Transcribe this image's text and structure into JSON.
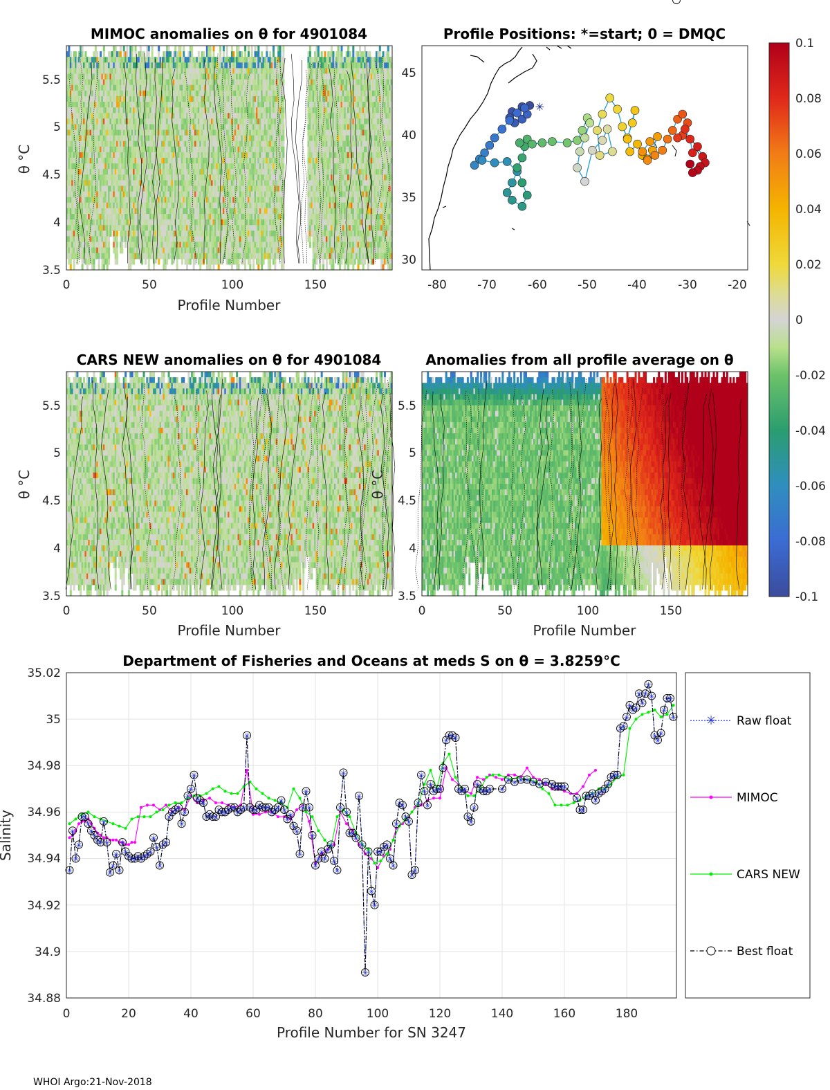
{
  "float_id": "4901084",
  "footer": "WHOI Argo:21-Nov-2018",
  "colorbar": {
    "ticks": [
      "0.1",
      "0.08",
      "0.06",
      "0.04",
      "0.02",
      "0",
      "-0.02",
      "-0.04",
      "-0.06",
      "-0.08",
      "-0.1"
    ],
    "range": [
      -0.1,
      0.1
    ]
  },
  "chart_data": [
    {
      "type": "heatmap",
      "id": "mimoc",
      "title": "MIMOC anomalies on θ  for 4901084",
      "xlabel": "Profile Number",
      "ylabel": "θ °C",
      "xlim": [
        0,
        196
      ],
      "ylim": [
        3.5,
        5.85
      ],
      "xticks": [
        "0",
        "50",
        "100",
        "150"
      ],
      "yticks": [
        "3.5",
        "4",
        "4.5",
        "5",
        "5.5"
      ]
    },
    {
      "type": "scatter",
      "id": "positions",
      "title": "Profile Positions: *=start; 0 = DMQC",
      "xlim": [
        -82,
        -17
      ],
      "ylim": [
        29,
        47
      ],
      "xticks": [
        "-80",
        "-70",
        "-60",
        "-50",
        "-40",
        "-30",
        "-20"
      ],
      "yticks": [
        "30",
        "35",
        "40",
        "45"
      ],
      "track_lon": [
        -60.5,
        -62,
        -64,
        -64.5,
        -63.5,
        -62,
        -61,
        -61.5,
        -63,
        -64.5,
        -66,
        -67.5,
        -68.5,
        -69.5,
        -70.5,
        -71.5,
        -70,
        -67.5,
        -65,
        -63,
        -64,
        -65,
        -64,
        -62,
        -61,
        -62,
        -63,
        -62,
        -61.5,
        -62.5,
        -61,
        -60,
        -58,
        -56,
        -53,
        -51,
        -50,
        -49,
        -48.5,
        -49.5,
        -50.5,
        -51,
        -49.5,
        -48,
        -46,
        -45,
        -44,
        -46.5,
        -47,
        -46,
        -44.5,
        -43,
        -42,
        -41,
        -40,
        -39.5,
        -41,
        -40.5,
        -39,
        -38,
        -37,
        -36,
        -35,
        -36.5,
        -38,
        -37,
        -35.5,
        -34,
        -33,
        -32,
        -31,
        -30,
        -29,
        -30,
        -31,
        -29.5,
        -28.5,
        -28,
        -27,
        -26,
        -25.5,
        -26.5,
        -27,
        -28,
        -28.5
      ],
      "track_lat": [
        42.2,
        42.1,
        41.7,
        41.2,
        40.8,
        41.1,
        41.5,
        42,
        41.6,
        41,
        40.3,
        39.6,
        39,
        38.4,
        37.9,
        37.4,
        37.8,
        37.6,
        37.7,
        36.9,
        36,
        35.2,
        34.6,
        34.1,
        35,
        36,
        37.2,
        38,
        38.9,
        39.2,
        39.5,
        39.1,
        39.2,
        39.3,
        39.2,
        39.4,
        40.2,
        41.2,
        40.8,
        39.6,
        38.5,
        37.2,
        36.1,
        38.6,
        39.4,
        40.3,
        38.5,
        38.2,
        40.2,
        41.5,
        42.8,
        41.9,
        40.5,
        39.6,
        40.8,
        41.8,
        39.5,
        38.5,
        39.1,
        38.2,
        37.9,
        38.6,
        39.7,
        39.3,
        38.5,
        37.8,
        38.2,
        38.6,
        39.5,
        40.2,
        41.1,
        41.5,
        40.8,
        39.8,
        39.6,
        40.3,
        39.5,
        38.4,
        38.9,
        38.1,
        37.6,
        37.3,
        37,
        36.8,
        37.5
      ],
      "start": [
        -58.5,
        42.1
      ]
    },
    {
      "type": "heatmap",
      "id": "cars",
      "title": "CARS NEW anomalies on θ for 4901084",
      "xlabel": "Profile Number",
      "ylabel": "θ °C",
      "xlim": [
        0,
        196
      ],
      "ylim": [
        3.5,
        5.85
      ],
      "xticks": [
        "0",
        "50",
        "100",
        "150"
      ],
      "yticks": [
        "3.5",
        "4",
        "4.5",
        "5",
        "5.5"
      ]
    },
    {
      "type": "heatmap",
      "id": "allavg",
      "title": "Anomalies from all profile average on θ",
      "xlabel": "Profile Number",
      "ylabel": "θ °C",
      "xlim": [
        0,
        196
      ],
      "ylim": [
        3.5,
        5.85
      ],
      "xticks": [
        "0",
        "50",
        "100",
        "150"
      ],
      "yticks": [
        "3.5",
        "4",
        "4.5",
        "5",
        "5.5"
      ]
    },
    {
      "type": "line",
      "id": "salinity",
      "title": "Department of Fisheries and Oceans at meds S on θ = 3.8259°C",
      "xlabel": "Profile Number for SN 3247",
      "ylabel": "Salinity",
      "xlim": [
        0,
        196
      ],
      "ylim": [
        34.88,
        35.02
      ],
      "xticks": [
        "0",
        "20",
        "40",
        "60",
        "80",
        "100",
        "120",
        "140",
        "160",
        "180"
      ],
      "yticks": [
        "34.88",
        "34.9",
        "34.92",
        "34.94",
        "34.96",
        "34.98",
        "35",
        "35.02"
      ],
      "legend": [
        "Raw float",
        "MIMOC",
        "CARS NEW",
        "Best float"
      ],
      "best_x": [
        1,
        2,
        3,
        4,
        5,
        6,
        7,
        8,
        9,
        10,
        11,
        12,
        13,
        14,
        15,
        16,
        17,
        18,
        19,
        20,
        21,
        22,
        23,
        24,
        25,
        26,
        27,
        28,
        29,
        30,
        31,
        32,
        33,
        34,
        35,
        36,
        37,
        38,
        39,
        40,
        41,
        42,
        43,
        44,
        45,
        46,
        47,
        48,
        49,
        50,
        51,
        52,
        53,
        54,
        55,
        56,
        57,
        58,
        59,
        60,
        61,
        62,
        63,
        64,
        65,
        66,
        67,
        68,
        69,
        70,
        71,
        72,
        73,
        74,
        75,
        76,
        77,
        78,
        79,
        80,
        81,
        82,
        83,
        84,
        85,
        86,
        87,
        88,
        89,
        90,
        91,
        92,
        93,
        94,
        95,
        96,
        97,
        98,
        99,
        100,
        101,
        102,
        103,
        104,
        105,
        106,
        107,
        108,
        109,
        110,
        111,
        112,
        113,
        114,
        115,
        116,
        117,
        118,
        119,
        120,
        121,
        122,
        123,
        124,
        125,
        126,
        127,
        128,
        129,
        130,
        131,
        132,
        133,
        134,
        135,
        136,
        140,
        142,
        144,
        146,
        148,
        150,
        152,
        154,
        156,
        157,
        158,
        159,
        160,
        164,
        165,
        166,
        167,
        168,
        169,
        170,
        171,
        172,
        173,
        174,
        175,
        176,
        177,
        178,
        179,
        180,
        181,
        182,
        183,
        184,
        185,
        186,
        187,
        188,
        189,
        190,
        191,
        192,
        193,
        194,
        195,
        196
      ],
      "best_y": [
        34.935,
        34.952,
        34.94,
        34.946,
        34.958,
        34.958,
        34.955,
        34.952,
        34.95,
        34.948,
        34.947,
        34.956,
        34.947,
        34.934,
        34.937,
        34.942,
        34.935,
        34.947,
        34.943,
        34.941,
        34.94,
        34.94,
        34.941,
        34.94,
        34.941,
        34.942,
        34.943,
        34.949,
        34.945,
        34.937,
        34.946,
        34.947,
        34.958,
        34.96,
        34.961,
        34.962,
        34.955,
        34.96,
        34.967,
        34.97,
        34.976,
        34.966,
        34.965,
        34.964,
        34.958,
        34.959,
        34.958,
        34.958,
        34.961,
        34.96,
        34.96,
        34.961,
        34.962,
        34.962,
        34.96,
        34.961,
        34.962,
        34.993,
        34.962,
        34.961,
        34.961,
        34.963,
        34.962,
        34.962,
        34.962,
        34.96,
        34.961,
        34.962,
        34.965,
        34.961,
        34.957,
        34.959,
        34.954,
        34.952,
        34.942,
        34.962,
        34.969,
        34.962,
        34.95,
        34.937,
        34.94,
        34.943,
        34.94,
        34.944,
        34.946,
        34.939,
        34.935,
        34.962,
        34.977,
        34.96,
        34.951,
        34.951,
        34.949,
        34.967,
        34.946,
        34.891,
        34.943,
        34.926,
        34.92,
        34.943,
        34.943,
        34.945,
        34.946,
        34.94,
        34.937,
        34.955,
        34.964,
        34.963,
        34.958,
        34.956,
        34.933,
        34.935,
        34.964,
        34.976,
        34.969,
        34.963,
        34.972,
        34.969,
        34.97,
        34.97,
        34.979,
        34.991,
        34.993,
        34.993,
        34.992,
        34.97,
        34.969,
        34.97,
        34.958,
        34.956,
        34.962,
        34.972,
        34.97,
        34.969,
        34.969,
        34.97,
        34.97,
        34.974,
        34.973,
        34.974,
        34.974,
        34.973,
        34.972,
        34.973,
        34.972,
        34.971,
        34.971,
        34.971,
        34.971,
        34.966,
        34.961,
        34.961,
        34.967,
        34.967,
        34.968,
        34.965,
        34.968,
        34.969,
        34.97,
        34.972,
        34.975,
        34.976,
        34.976,
        34.996,
        34.997,
        35.001,
        35.006,
        35.004,
        35.005,
        35.011,
        35.007,
        35.011,
        35.015,
        35.01,
        34.993,
        34.991,
        34.994,
        35.004,
        35.009,
        35.009,
        35.001
      ],
      "mimoc_x": [
        1,
        2,
        3,
        4,
        5,
        6,
        7,
        8,
        9,
        10,
        11,
        12,
        13,
        14,
        15,
        16,
        17,
        18,
        19,
        20,
        21,
        22,
        24,
        26,
        28,
        30,
        32,
        34,
        36,
        38,
        40,
        42,
        44,
        46,
        48,
        50,
        52,
        54,
        56,
        58,
        60,
        62,
        64,
        66,
        68,
        70,
        72,
        74,
        76,
        78,
        80,
        82,
        84,
        86,
        88,
        90,
        92,
        94,
        96,
        98,
        100,
        102,
        104,
        106,
        108,
        110,
        112,
        114,
        116,
        118,
        120,
        122,
        124,
        126,
        128,
        130,
        132,
        134,
        136,
        138,
        140,
        142,
        144,
        146,
        148,
        150,
        152,
        154,
        156,
        158,
        160,
        162,
        164,
        166,
        168,
        170
      ],
      "mimoc_y": [
        34.949,
        34.95,
        34.952,
        34.955,
        34.956,
        34.956,
        34.957,
        34.955,
        34.953,
        34.951,
        34.95,
        34.949,
        34.949,
        34.948,
        34.948,
        34.948,
        34.947,
        34.947,
        34.946,
        34.946,
        34.947,
        34.947,
        34.962,
        34.963,
        34.963,
        34.961,
        34.963,
        34.96,
        34.962,
        34.961,
        34.967,
        34.964,
        34.965,
        34.966,
        34.964,
        34.964,
        34.963,
        34.962,
        34.963,
        34.978,
        34.959,
        34.959,
        34.96,
        34.96,
        34.958,
        34.958,
        34.957,
        34.961,
        34.963,
        34.956,
        34.938,
        34.942,
        34.944,
        34.946,
        34.96,
        34.955,
        34.952,
        34.946,
        34.942,
        34.94,
        34.936,
        34.941,
        34.944,
        34.953,
        34.955,
        34.958,
        34.962,
        34.963,
        34.965,
        34.966,
        34.966,
        34.979,
        34.974,
        34.972,
        34.969,
        34.968,
        34.975,
        34.974,
        34.976,
        34.975,
        34.974,
        34.976,
        34.976,
        34.975,
        34.979,
        34.975,
        34.974,
        34.972,
        34.97,
        34.97,
        34.969,
        34.968,
        34.968,
        34.971,
        34.976,
        34.978
      ],
      "cars_x": [
        1,
        3,
        5,
        7,
        9,
        11,
        13,
        15,
        17,
        19,
        21,
        23,
        25,
        27,
        29,
        31,
        33,
        35,
        37,
        39,
        41,
        43,
        45,
        47,
        49,
        51,
        53,
        55,
        57,
        59,
        61,
        63,
        65,
        67,
        69,
        71,
        73,
        75,
        77,
        79,
        81,
        83,
        85,
        87,
        89,
        91,
        93,
        95,
        97,
        99,
        101,
        103,
        105,
        107,
        109,
        111,
        113,
        115,
        117,
        119,
        121,
        123,
        125,
        127,
        129,
        131,
        133,
        135,
        137,
        139,
        141,
        143,
        145,
        147,
        149,
        151,
        153,
        155,
        157,
        159,
        161,
        163,
        165,
        167,
        169,
        171,
        173,
        175,
        177,
        179,
        181,
        183,
        185,
        187,
        189,
        191,
        193,
        195
      ],
      "cars_y": [
        34.955,
        34.957,
        34.959,
        34.96,
        34.958,
        34.957,
        34.956,
        34.955,
        34.954,
        34.953,
        34.957,
        34.958,
        34.958,
        34.958,
        34.96,
        34.961,
        34.963,
        34.964,
        34.964,
        34.966,
        34.967,
        34.967,
        34.968,
        34.97,
        34.971,
        34.969,
        34.968,
        34.968,
        34.971,
        34.973,
        34.97,
        34.968,
        34.966,
        34.965,
        34.964,
        34.962,
        34.97,
        34.966,
        34.96,
        34.958,
        34.952,
        34.948,
        34.945,
        34.958,
        34.961,
        34.958,
        34.951,
        34.946,
        34.944,
        34.938,
        34.939,
        34.942,
        34.948,
        34.954,
        34.957,
        34.96,
        34.963,
        34.972,
        34.978,
        34.97,
        34.981,
        34.985,
        34.975,
        34.97,
        34.967,
        34.967,
        34.97,
        34.975,
        34.976,
        34.976,
        34.975,
        34.974,
        34.975,
        34.974,
        34.974,
        34.973,
        34.97,
        34.968,
        34.963,
        34.963,
        34.963,
        34.964,
        34.965,
        34.967,
        34.968,
        34.97,
        34.97,
        34.972,
        34.975,
        34.976,
        34.996,
        35,
        35.002,
        35.003,
        35.004,
        35.001,
        35.002,
        35.006
      ]
    }
  ]
}
